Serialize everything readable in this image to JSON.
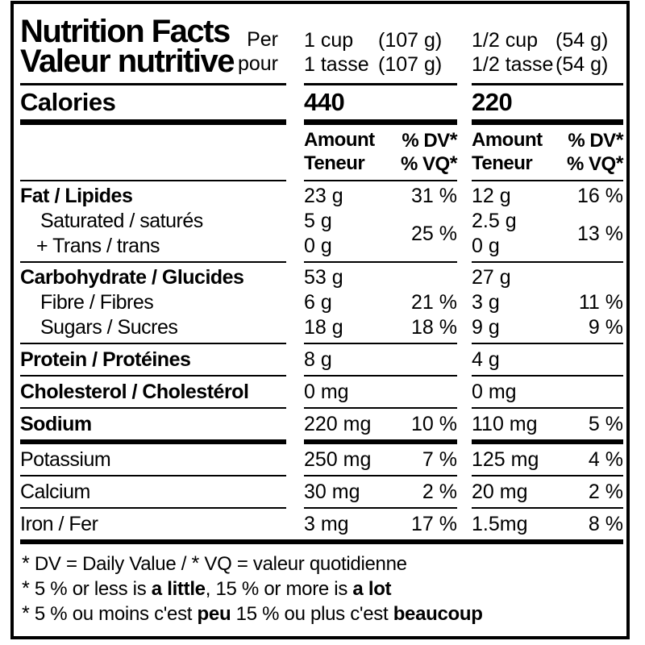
{
  "colors": {
    "ink": "#000000",
    "paper": "#ffffff"
  },
  "header": {
    "title_en": "Nutrition Facts",
    "title_fr": "Valeur nutritive",
    "per_en": "Per",
    "per_fr": "pour",
    "serving1": {
      "measure_en": "1 cup",
      "weight_en": "(107 g)",
      "measure_fr": "1 tasse",
      "weight_fr": "(107 g)"
    },
    "serving2": {
      "measure_en": "1/2 cup",
      "weight_en": "(54 g)",
      "measure_fr": "1/2 tasse",
      "weight_fr": "(54 g)"
    }
  },
  "calories": {
    "label": "Calories",
    "serving1": "440",
    "serving2": "220"
  },
  "column_headers": {
    "amount_en": "Amount",
    "amount_fr": "Teneur",
    "dv_en": "% DV",
    "dv_fr": "% VQ",
    "star": "*"
  },
  "fat_section": {
    "fat": {
      "label": "Fat / Lipides",
      "col1_amount": "23 g",
      "col1_dv": "31 %",
      "col2_amount": "12 g",
      "col2_dv": "16 %"
    },
    "saturated": {
      "label": "Saturated / saturés",
      "col1_amount": "5 g",
      "col2_amount": "2.5 g"
    },
    "trans": {
      "label": "+ Trans / trans",
      "col1_amount": "0 g",
      "col2_amount": "0 g"
    },
    "sat_trans_col1_dv": "25 %",
    "sat_trans_col2_dv": "13 %"
  },
  "carb_section": {
    "carbohydrate": {
      "label": "Carbohydrate / Glucides",
      "col1_amount": "53 g",
      "col1_dv": "",
      "col2_amount": "27 g",
      "col2_dv": ""
    },
    "fibre": {
      "label": "Fibre / Fibres",
      "col1_amount": "6 g",
      "col1_dv": "21 %",
      "col2_amount": "3 g",
      "col2_dv": "11 %"
    },
    "sugars": {
      "label": "Sugars / Sucres",
      "col1_amount": "18 g",
      "col1_dv": "18 %",
      "col2_amount": "9 g",
      "col2_dv": "9 %"
    }
  },
  "nutrients": {
    "protein": {
      "label": "Protein / Protéines",
      "col1_amount": "8 g",
      "col1_dv": "",
      "col2_amount": "4 g",
      "col2_dv": ""
    },
    "cholesterol": {
      "label": "Cholesterol / Cholestérol",
      "col1_amount": "0 mg",
      "col1_dv": "",
      "col2_amount": "0 mg",
      "col2_dv": ""
    },
    "sodium": {
      "label": "Sodium",
      "col1_amount": "220 mg",
      "col1_dv": "10 %",
      "col2_amount": "110 mg",
      "col2_dv": "5 %"
    },
    "potassium": {
      "label": "Potassium",
      "col1_amount": "250 mg",
      "col1_dv": "7 %",
      "col2_amount": "125 mg",
      "col2_dv": "4 %"
    },
    "calcium": {
      "label": "Calcium",
      "col1_amount": "30 mg",
      "col1_dv": "2 %",
      "col2_amount": "20 mg",
      "col2_dv": "2 %"
    },
    "iron": {
      "label": "Iron / Fer",
      "col1_amount": "3 mg",
      "col1_dv": "17 %",
      "col2_amount": "1.5mg",
      "col2_dv": "8 %"
    }
  },
  "footnotes": {
    "line1": {
      "star": "*",
      "part1": "DV = Daily Value / ",
      "star2": "*",
      "part2": "VQ = valeur quotidienne"
    },
    "line2": {
      "star": "*",
      "pre": "5 % or less is ",
      "bold1": "a little",
      "mid": ", 15 % or more is ",
      "bold2": "a lot"
    },
    "line3": {
      "star": "*",
      "pre": "5 % ou moins c'est ",
      "bold1": "peu",
      "mid": " 15 % ou plus c'est ",
      "bold2": "beaucoup"
    }
  }
}
